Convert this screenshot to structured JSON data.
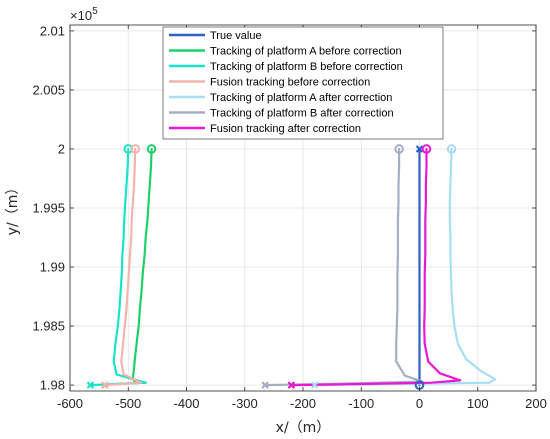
{
  "chart_data": {
    "type": "line",
    "xlabel": "x/（m）",
    "ylabel": "y/（m）",
    "xlim": [
      -600,
      200
    ],
    "ylim": [
      197950,
      201050
    ],
    "y_exponent_label": "×10",
    "y_exponent_power": "5",
    "x_ticks": [
      -600,
      -500,
      -400,
      -300,
      -200,
      -100,
      0,
      100,
      200
    ],
    "x_tick_labels": [
      "-600",
      "-500",
      "-400",
      "-300",
      "-200",
      "-100",
      "0",
      "100",
      "200"
    ],
    "y_ticks": [
      198000,
      198500,
      199000,
      199500,
      200000,
      200500,
      201000
    ],
    "y_tick_labels": [
      "1.98",
      "1.985",
      "1.99",
      "1.995",
      "2",
      "2.005",
      "2.01"
    ],
    "grid": true,
    "legend_position": "top-center",
    "series": [
      {
        "name": "True value",
        "color": "#2f5fc4",
        "x": [
          0,
          0
        ],
        "y": [
          198000,
          200000
        ]
      },
      {
        "name": "Tracking of platform A before correction",
        "color": "#1fd06a",
        "x": [
          -460,
          -461,
          -463,
          -465,
          -467,
          -470,
          -472,
          -475,
          -477,
          -480,
          -482,
          -485,
          -488,
          -490,
          -492,
          -489,
          -470,
          -520,
          -540
        ],
        "y": [
          200000,
          199850,
          199700,
          199550,
          199400,
          199250,
          199100,
          198950,
          198800,
          198650,
          198500,
          198380,
          198250,
          198150,
          198060,
          198030,
          198020,
          198010,
          198000
        ]
      },
      {
        "name": "Tracking of platform B before correction",
        "color": "#19e3c8",
        "x": [
          -500,
          -501,
          -503,
          -505,
          -507,
          -508,
          -510,
          -511,
          -513,
          -515,
          -518,
          -522,
          -525,
          -520,
          -470,
          -540,
          -565
        ],
        "y": [
          200000,
          199850,
          199700,
          199550,
          199400,
          199250,
          199100,
          198950,
          198800,
          198650,
          198500,
          198350,
          198200,
          198090,
          198020,
          198005,
          198000
        ]
      },
      {
        "name": "Fusion tracking before correction",
        "color": "#f4b4ae",
        "x": [
          -488,
          -489,
          -490,
          -492,
          -494,
          -495,
          -497,
          -499,
          -501,
          -503,
          -506,
          -509,
          -512,
          -508,
          -478,
          -522,
          -540
        ],
        "y": [
          200000,
          199850,
          199700,
          199550,
          199400,
          199250,
          199100,
          198950,
          198800,
          198650,
          198500,
          198350,
          198200,
          198090,
          198020,
          198005,
          198000
        ]
      },
      {
        "name": "Tracking of platform A after correction",
        "color": "#a8def2",
        "x": [
          55,
          54,
          53,
          52,
          52,
          53,
          53,
          54,
          55,
          57,
          60,
          66,
          80,
          105,
          130,
          120,
          -100,
          -180
        ],
        "y": [
          200000,
          199850,
          199700,
          199550,
          199400,
          199250,
          199100,
          198950,
          198800,
          198650,
          198500,
          198350,
          198220,
          198120,
          198050,
          198020,
          198005,
          198000
        ]
      },
      {
        "name": "Tracking of platform B after correction",
        "color": "#a8aec2",
        "x": [
          -35,
          -35,
          -36,
          -36,
          -37,
          -37,
          -37,
          -38,
          -38,
          -38,
          -39,
          -40,
          -40,
          -25,
          5,
          -150,
          -265
        ],
        "y": [
          200000,
          199850,
          199700,
          199550,
          199400,
          199250,
          199100,
          198950,
          198800,
          198650,
          198500,
          198350,
          198200,
          198080,
          198030,
          198010,
          198000
        ]
      },
      {
        "name": "Fusion tracking after correction",
        "color": "#ea18d4",
        "x": [
          12,
          12,
          11,
          11,
          10,
          10,
          10,
          9,
          9,
          9,
          8,
          9,
          15,
          35,
          70,
          20,
          -150,
          -220
        ],
        "y": [
          200000,
          199850,
          199700,
          199550,
          199400,
          199250,
          199100,
          198950,
          198800,
          198650,
          198500,
          198350,
          198200,
          198100,
          198040,
          198020,
          198005,
          198000
        ]
      }
    ]
  }
}
